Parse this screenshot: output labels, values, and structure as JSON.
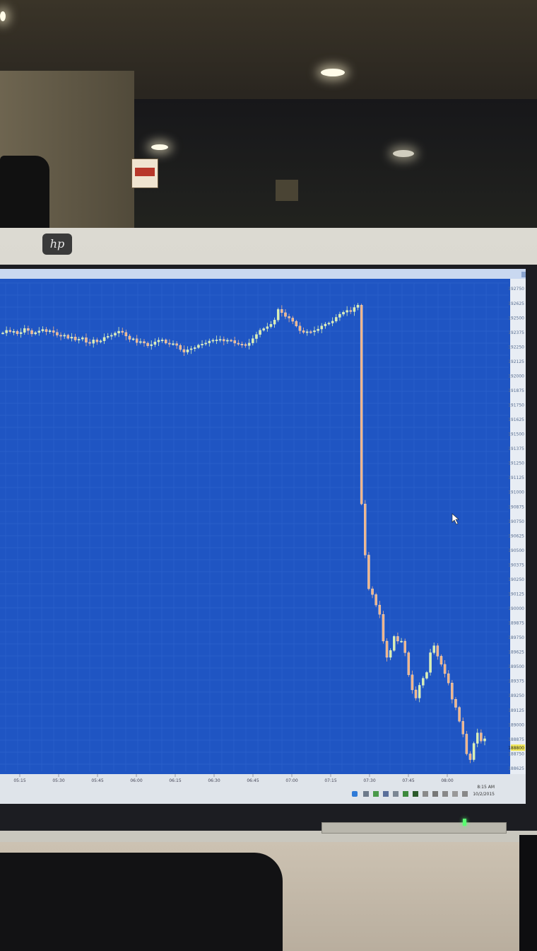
{
  "monitor": {
    "brand": "hp"
  },
  "chart_data": {
    "type": "candlestick",
    "grid": true,
    "colors": {
      "background": "#1f55c3",
      "up_candle": "#d8f0b0",
      "down_candle": "#f0b48a",
      "price_marker": "#f2e85a"
    },
    "x_ticks": [
      "05:15",
      "05:30",
      "05:45",
      "06:00",
      "06:15",
      "06:30",
      "06:45",
      "07:00",
      "07:15",
      "07:30",
      "07:45",
      "08:00"
    ],
    "y_ticks": [
      192750,
      192625,
      192500,
      192375,
      192250,
      192125,
      192000,
      191875,
      191750,
      191625,
      191500,
      191375,
      191250,
      191125,
      191000,
      190875,
      190750,
      190625,
      190500,
      190375,
      190250,
      190125,
      190000,
      189875,
      189750,
      189625,
      189500,
      189375,
      189250,
      189125,
      189000,
      188875,
      188750,
      188625
    ],
    "y_range": [
      188600,
      192800
    ],
    "current_price": 188800,
    "series": [
      {
        "values": [
          192371,
          192393,
          192381,
          192384,
          192363,
          192376,
          192409,
          192392,
          192362,
          192374,
          192388,
          192401,
          192382,
          192390,
          192375,
          192352,
          192344,
          192352,
          192325,
          192336,
          192310,
          192317,
          192330,
          192290,
          192281,
          192312,
          192293,
          192303,
          192333,
          192342,
          192351,
          192369,
          192386,
          192375,
          192344,
          192316,
          192321,
          192288,
          192297,
          192283,
          192260,
          192271,
          192294,
          192309,
          192311,
          192283,
          192276,
          192279,
          192264,
          192228,
          192206,
          192226,
          192235,
          192245,
          192266,
          192275,
          192284,
          192301,
          192309,
          192312,
          192316,
          192301,
          192309,
          192305,
          192283,
          192275,
          192272,
          192262,
          192284,
          192322,
          192357,
          192394,
          192408,
          192425,
          192446,
          192482,
          192573,
          192545,
          192512,
          192499,
          192471,
          192430,
          192390,
          192376,
          192382,
          192380,
          192390,
          192404,
          192431,
          192447,
          192456,
          192472,
          192505,
          192532,
          192549,
          192565,
          192554,
          192590,
          192610,
          190900,
          190460,
          190170,
          190120,
          190030,
          189950,
          189720,
          189580,
          189640,
          189760,
          189720,
          189720,
          189620,
          189430,
          189300,
          189230,
          189340,
          189400,
          189450,
          189620,
          189680,
          189590,
          189520,
          189440,
          189360,
          189220,
          189150,
          189030,
          188920,
          188750,
          188700,
          188840,
          188930,
          188860,
          188880
        ]
      }
    ]
  },
  "taskbar": {
    "time": "8:15 AM",
    "date": "10/2/2015"
  }
}
